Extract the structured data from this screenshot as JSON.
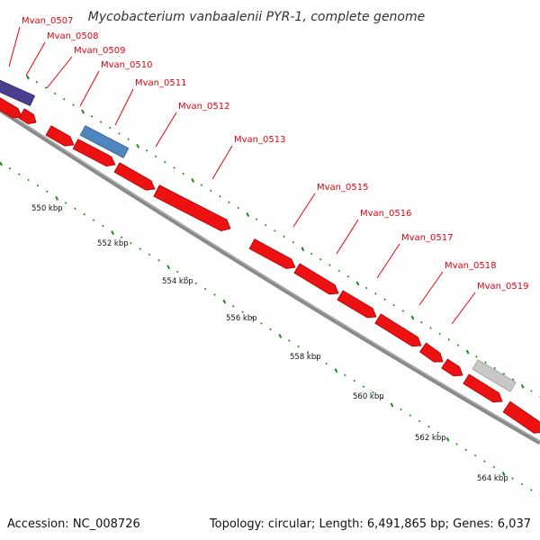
{
  "title": "Mycobacterium vanbaalenii PYR-1, complete genome",
  "footer": {
    "accession": "Accession: NC_008726",
    "summary": "Topology: circular; Length: 6,491,865 bp; Genes: 6,037"
  },
  "colors": {
    "cds": "#ee1111",
    "backbone": "#777777",
    "tick": "#1a8a1a",
    "label": "#e8000b",
    "other_a": "#4a3f8f",
    "other_b": "#4f86c0",
    "other_c": "#c8c8c8"
  },
  "gene_labels": [
    "Mvan_0507",
    "Mvan_0508",
    "Mvan_0509",
    "Mvan_0510",
    "Mvan_0511",
    "Mvan_0512",
    "Mvan_0513",
    "Mvan_0515",
    "Mvan_0516",
    "Mvan_0517",
    "Mvan_0518",
    "Mvan_0519"
  ],
  "kbp_labels": [
    "550 kbp",
    "552 kbp",
    "554 kbp",
    "556 kbp",
    "558 kbp",
    "560 kbp",
    "562 kbp",
    "564 kbp"
  ]
}
